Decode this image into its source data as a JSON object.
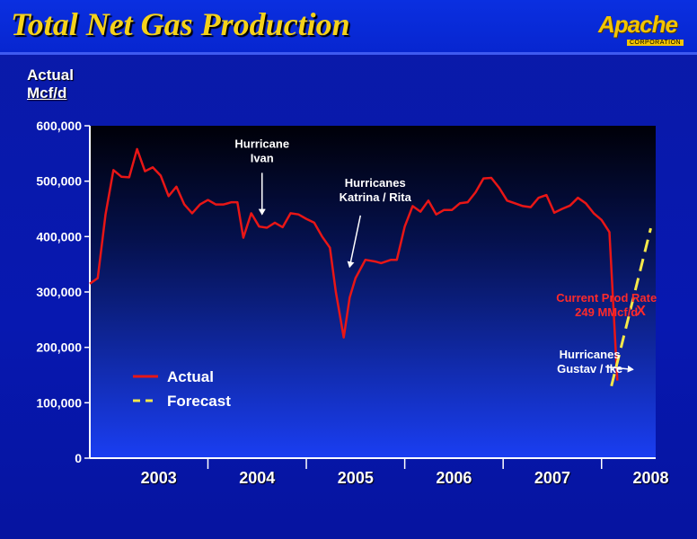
{
  "header": {
    "title": "Total Net Gas Production",
    "logo_word": "Apache",
    "logo_sub": "CORPORATION"
  },
  "colors": {
    "actual": "#e81616",
    "forecast": "#f5e84a",
    "annotation_red": "#ff2a2a"
  },
  "chart_data": {
    "type": "line",
    "ylabel": "Actual",
    "ylabel_unit": "Mcf/d",
    "ylim": [
      0,
      600000
    ],
    "yticks": [
      "0",
      "100,000",
      "200,000",
      "300,000",
      "400,000",
      "500,000",
      "600,000"
    ],
    "x_range": [
      2002.8,
      2008.55
    ],
    "year_labels": [
      "2003",
      "2004",
      "2005",
      "2006",
      "2007",
      "2008"
    ],
    "year_centers": [
      2003.5,
      2004.5,
      2005.5,
      2006.5,
      2007.5,
      2008.5
    ],
    "legend": {
      "position": "bottom-left",
      "entries": [
        "Actual",
        "Forecast"
      ]
    },
    "series": [
      {
        "name": "Actual",
        "style": "solid",
        "points": [
          [
            2002.8,
            315000
          ],
          [
            2002.88,
            325000
          ],
          [
            2002.96,
            440000
          ],
          [
            2003.04,
            520000
          ],
          [
            2003.12,
            508000
          ],
          [
            2003.2,
            507000
          ],
          [
            2003.28,
            558000
          ],
          [
            2003.36,
            518000
          ],
          [
            2003.44,
            525000
          ],
          [
            2003.52,
            510000
          ],
          [
            2003.6,
            473000
          ],
          [
            2003.68,
            490000
          ],
          [
            2003.76,
            458000
          ],
          [
            2003.84,
            442000
          ],
          [
            2003.92,
            458000
          ],
          [
            2004.0,
            466000
          ],
          [
            2004.08,
            458000
          ],
          [
            2004.16,
            458000
          ],
          [
            2004.24,
            462000
          ],
          [
            2004.3,
            462000
          ],
          [
            2004.36,
            398000
          ],
          [
            2004.44,
            442000
          ],
          [
            2004.52,
            418000
          ],
          [
            2004.6,
            416000
          ],
          [
            2004.68,
            425000
          ],
          [
            2004.76,
            417000
          ],
          [
            2004.84,
            442000
          ],
          [
            2004.92,
            440000
          ],
          [
            2005.0,
            432000
          ],
          [
            2005.08,
            425000
          ],
          [
            2005.16,
            400000
          ],
          [
            2005.24,
            380000
          ],
          [
            2005.3,
            300000
          ],
          [
            2005.38,
            218000
          ],
          [
            2005.44,
            290000
          ],
          [
            2005.5,
            325000
          ],
          [
            2005.6,
            358000
          ],
          [
            2005.7,
            355000
          ],
          [
            2005.76,
            352000
          ],
          [
            2005.86,
            358000
          ],
          [
            2005.92,
            358000
          ],
          [
            2006.0,
            418000
          ],
          [
            2006.08,
            455000
          ],
          [
            2006.16,
            445000
          ],
          [
            2006.24,
            465000
          ],
          [
            2006.32,
            440000
          ],
          [
            2006.4,
            448000
          ],
          [
            2006.48,
            448000
          ],
          [
            2006.56,
            460000
          ],
          [
            2006.64,
            462000
          ],
          [
            2006.72,
            480000
          ],
          [
            2006.8,
            505000
          ],
          [
            2006.88,
            506000
          ],
          [
            2006.96,
            488000
          ],
          [
            2007.04,
            465000
          ],
          [
            2007.12,
            460000
          ],
          [
            2007.2,
            455000
          ],
          [
            2007.28,
            453000
          ],
          [
            2007.36,
            470000
          ],
          [
            2007.44,
            475000
          ],
          [
            2007.52,
            443000
          ],
          [
            2007.6,
            450000
          ],
          [
            2007.68,
            456000
          ],
          [
            2007.76,
            470000
          ],
          [
            2007.84,
            460000
          ],
          [
            2007.92,
            442000
          ],
          [
            2008.0,
            430000
          ],
          [
            2008.08,
            408000
          ],
          [
            2008.16,
            140000
          ]
        ]
      },
      {
        "name": "Forecast",
        "style": "dashed",
        "points": [
          [
            2008.1,
            130000
          ],
          [
            2008.5,
            415000
          ]
        ]
      }
    ],
    "annotations": [
      {
        "id": "ivan",
        "lines": [
          "Hurricane",
          "Ivan"
        ],
        "color": "white",
        "text_at": [
          2004.55,
          560000
        ],
        "arrow_from": [
          2004.55,
          515000
        ],
        "arrow_to": [
          2004.55,
          440000
        ]
      },
      {
        "id": "katrina",
        "lines": [
          "Hurricanes",
          "Katrina / Rita"
        ],
        "color": "white",
        "text_at": [
          2005.7,
          490000
        ],
        "arrow_from": [
          2005.55,
          438000
        ],
        "arrow_to": [
          2005.44,
          345000
        ]
      },
      {
        "id": "current",
        "lines": [
          "Current Prod Rate",
          "249 MMcf/d"
        ],
        "color": "red",
        "text_at": [
          2008.05,
          282000
        ]
      },
      {
        "id": "gustav",
        "lines": [
          "Hurricanes",
          "Gustav / Ike"
        ],
        "color": "white",
        "text_at": [
          2007.88,
          180000
        ],
        "arrow_from": [
          2008.04,
          165000
        ],
        "arrow_to": [
          2008.32,
          160000
        ]
      }
    ],
    "current_marker": {
      "label": "X",
      "at": [
        2008.4,
        258000
      ]
    }
  }
}
